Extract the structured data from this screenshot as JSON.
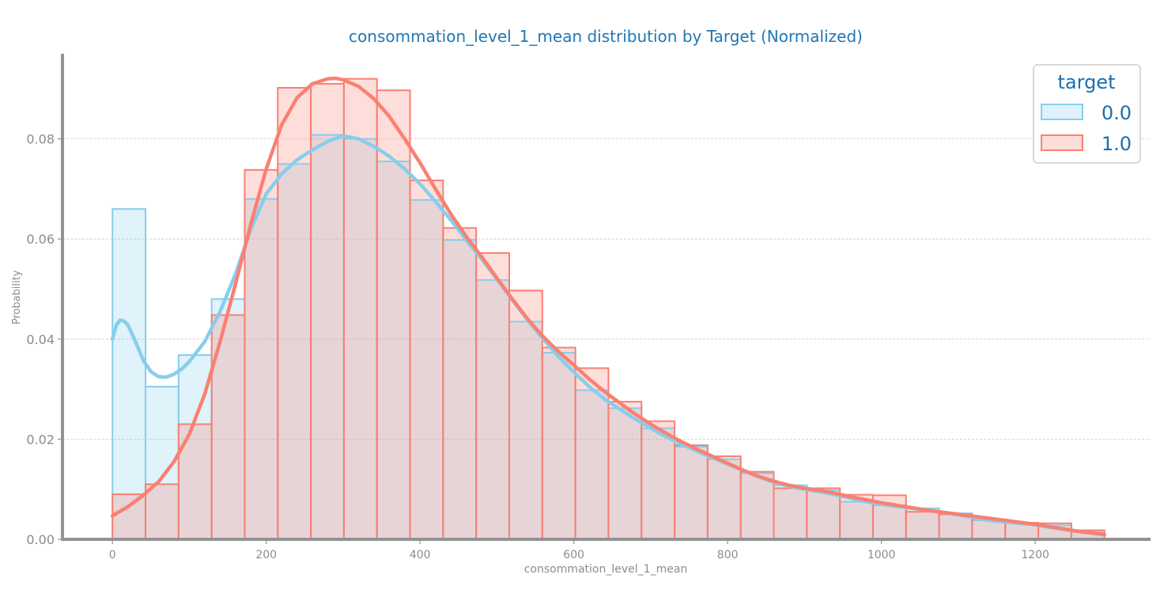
{
  "chart_data": {
    "type": "histogram",
    "title": "consommation_level_1_mean distribution by Target (Normalized)",
    "xlabel": "consommation_level_1_mean",
    "ylabel": "Probability",
    "xlim": [
      -65,
      1350
    ],
    "ylim": [
      0,
      0.097
    ],
    "xticks": [
      0,
      200,
      400,
      600,
      800,
      1000,
      1200
    ],
    "yticks": [
      0.0,
      0.02,
      0.04,
      0.06,
      0.08
    ],
    "xtick_labels": [
      "0",
      "200",
      "400",
      "600",
      "800",
      "1000",
      "1200"
    ],
    "ytick_labels": [
      "0.00",
      "0.02",
      "0.04",
      "0.06",
      "0.08"
    ],
    "grid": "horizontal dashed",
    "legend": {
      "title": "target",
      "placement": "top-right"
    },
    "bin_edges": [
      0,
      43,
      86,
      129,
      172,
      215,
      258,
      301,
      344,
      387,
      430,
      473,
      516,
      559,
      602,
      645,
      688,
      731,
      774,
      817,
      860,
      903,
      946,
      989,
      1032,
      1075,
      1118,
      1161,
      1204,
      1247,
      1290
    ],
    "series": [
      {
        "name": "0.0",
        "color": "#87ceeb",
        "fill": "#dff1fa",
        "values": [
          0.066,
          0.0305,
          0.0368,
          0.048,
          0.068,
          0.075,
          0.0808,
          0.08,
          0.0755,
          0.0678,
          0.0598,
          0.0518,
          0.0435,
          0.0373,
          0.0298,
          0.0262,
          0.0222,
          0.0185,
          0.016,
          0.0132,
          0.0108,
          0.0098,
          0.0075,
          0.0068,
          0.0062,
          0.0052,
          0.0038,
          0.0033,
          0.0028,
          0.0018
        ],
        "kde_x": [
          0,
          5,
          10,
          15,
          20,
          25,
          30,
          40,
          50,
          60,
          70,
          80,
          90,
          100,
          120,
          140,
          160,
          180,
          200,
          220,
          240,
          260,
          280,
          300,
          320,
          340,
          360,
          380,
          400,
          420,
          440,
          460,
          480,
          500,
          520,
          540,
          560,
          580,
          600,
          620,
          640,
          660,
          680,
          700,
          720,
          740,
          760,
          780,
          800,
          820,
          840,
          860,
          880,
          900,
          920,
          940,
          960,
          980,
          1000,
          1020,
          1040,
          1060,
          1080,
          1100,
          1120,
          1140,
          1160,
          1180,
          1200,
          1220,
          1240,
          1260,
          1290
        ],
        "kde_y": [
          0.04,
          0.0428,
          0.0438,
          0.0436,
          0.0428,
          0.0412,
          0.0395,
          0.0358,
          0.0335,
          0.0325,
          0.0324,
          0.033,
          0.034,
          0.0355,
          0.0395,
          0.0455,
          0.053,
          0.062,
          0.069,
          0.073,
          0.0758,
          0.0778,
          0.0795,
          0.0806,
          0.08,
          0.0785,
          0.0765,
          0.074,
          0.071,
          0.0675,
          0.0638,
          0.0598,
          0.056,
          0.052,
          0.0478,
          0.0438,
          0.04,
          0.0365,
          0.0334,
          0.0305,
          0.028,
          0.026,
          0.024,
          0.0222,
          0.0205,
          0.019,
          0.0176,
          0.0163,
          0.015,
          0.0138,
          0.0125,
          0.0114,
          0.0106,
          0.01,
          0.0095,
          0.0089,
          0.0082,
          0.0075,
          0.007,
          0.0066,
          0.0062,
          0.0058,
          0.0054,
          0.0049,
          0.0043,
          0.0038,
          0.0035,
          0.0032,
          0.0029,
          0.0024,
          0.0019,
          0.0015,
          0.0009
        ]
      },
      {
        "name": "1.0",
        "color": "#fa8072",
        "fill": "#fdddd9",
        "values": [
          0.009,
          0.011,
          0.023,
          0.0448,
          0.0738,
          0.0902,
          0.091,
          0.092,
          0.0897,
          0.0717,
          0.0622,
          0.0572,
          0.0497,
          0.0383,
          0.0342,
          0.0275,
          0.0236,
          0.0188,
          0.0166,
          0.0135,
          0.0102,
          0.0102,
          0.0089,
          0.0088,
          0.0055,
          0.005,
          0.004,
          0.0033,
          0.0032,
          0.0018
        ],
        "kde_x": [
          0,
          20,
          40,
          60,
          80,
          100,
          120,
          140,
          160,
          180,
          200,
          220,
          240,
          260,
          280,
          290,
          300,
          320,
          340,
          360,
          380,
          400,
          420,
          440,
          460,
          480,
          500,
          520,
          540,
          560,
          580,
          600,
          620,
          640,
          660,
          680,
          700,
          720,
          740,
          760,
          780,
          800,
          820,
          840,
          860,
          880,
          900,
          920,
          940,
          960,
          980,
          1000,
          1020,
          1040,
          1060,
          1080,
          1100,
          1120,
          1140,
          1160,
          1180,
          1200,
          1220,
          1240,
          1260,
          1290
        ],
        "kde_y": [
          0.0047,
          0.0065,
          0.0088,
          0.0115,
          0.0155,
          0.021,
          0.029,
          0.0395,
          0.051,
          0.063,
          0.074,
          0.0828,
          0.0882,
          0.091,
          0.092,
          0.0921,
          0.0918,
          0.0905,
          0.088,
          0.0845,
          0.08,
          0.0752,
          0.07,
          0.065,
          0.0605,
          0.0565,
          0.0522,
          0.048,
          0.044,
          0.0405,
          0.0375,
          0.0348,
          0.032,
          0.0295,
          0.0272,
          0.025,
          0.023,
          0.0212,
          0.0195,
          0.018,
          0.0166,
          0.0152,
          0.0138,
          0.0126,
          0.0116,
          0.0108,
          0.0102,
          0.0098,
          0.0092,
          0.0085,
          0.0079,
          0.0073,
          0.0068,
          0.0063,
          0.0058,
          0.0054,
          0.005,
          0.0046,
          0.0042,
          0.0038,
          0.0034,
          0.003,
          0.0025,
          0.002,
          0.0015,
          0.001
        ]
      }
    ],
    "colors": {
      "title": "#1f77b4",
      "axis": "#929292",
      "tick_label": "#8c8c8c",
      "grid": "#cccccc",
      "legend_text": "#1a6fb0"
    }
  }
}
